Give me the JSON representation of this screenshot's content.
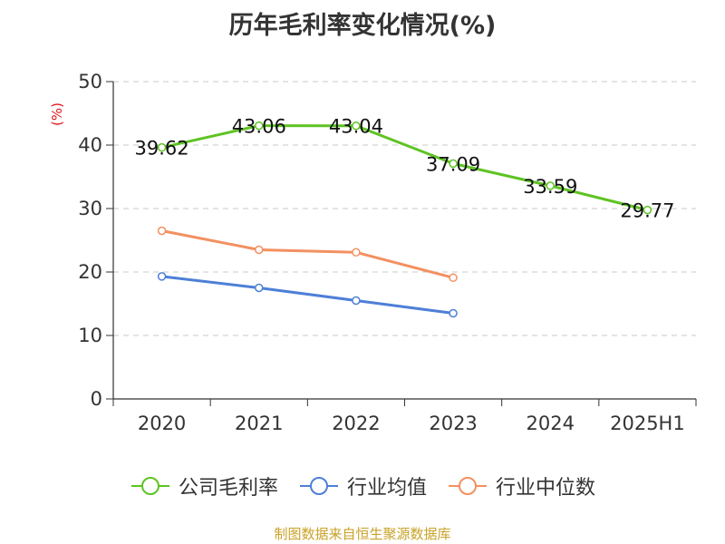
{
  "title": "历年毛利率变化情况(%)",
  "source_note": "制图数据来自恒生聚源数据库",
  "colors": {
    "company": "#5ec323",
    "industry_avg": "#4e7fd7",
    "industry_median": "#f39060",
    "unit_label": "#e0161d",
    "source_note": "#c9a227"
  },
  "chart_data": {
    "type": "line",
    "title": "历年毛利率变化情况(%)",
    "ylabel": "(%)",
    "xlabel": "",
    "categories": [
      "2020",
      "2021",
      "2022",
      "2023",
      "2024",
      "2025H1"
    ],
    "ylim": [
      0,
      50
    ],
    "yticks": [
      0,
      10,
      20,
      30,
      40,
      50
    ],
    "grid": "horizontal dashed",
    "legend_position": "bottom",
    "series": [
      {
        "name": "公司毛利率",
        "color": "#5ec323",
        "values": [
          39.62,
          43.06,
          43.04,
          37.09,
          33.59,
          29.77
        ],
        "labels": [
          "39.62",
          "43.06",
          "43.04",
          "37.09",
          "33.59",
          "29.77"
        ]
      },
      {
        "name": "行业均值",
        "color": "#4e7fd7",
        "values": [
          19.3,
          17.5,
          15.5,
          13.5,
          null,
          null
        ]
      },
      {
        "name": "行业中位数",
        "color": "#f39060",
        "values": [
          26.5,
          23.5,
          23.1,
          19.1,
          null,
          null
        ]
      }
    ]
  }
}
